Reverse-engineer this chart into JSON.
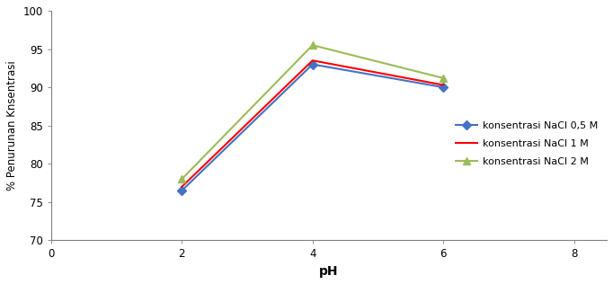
{
  "series": [
    {
      "label": "konsentrasi NaCl 0,5 M",
      "x": [
        2,
        4,
        6
      ],
      "y": [
        76.5,
        93.0,
        90.0
      ],
      "color": "#4472C4",
      "marker": "D",
      "markersize": 5,
      "linewidth": 1.5
    },
    {
      "label": "konsentrasi NaCl 1 M",
      "x": [
        2,
        4,
        6
      ],
      "y": [
        77.0,
        93.5,
        90.3
      ],
      "color": "#FF0000",
      "marker": "None",
      "markersize": 0,
      "linewidth": 1.5
    },
    {
      "label": "konsentrasi NaCl 2 M",
      "x": [
        2,
        4,
        6
      ],
      "y": [
        78.0,
        95.5,
        91.2
      ],
      "color": "#9BBB59",
      "marker": "^",
      "markersize": 6,
      "linewidth": 1.5
    }
  ],
  "xlabel": "pH",
  "ylabel": "% Penurunan Knsentrasi",
  "xlim": [
    0,
    8.5
  ],
  "ylim": [
    70,
    100
  ],
  "xticks": [
    0,
    2,
    4,
    6,
    8
  ],
  "yticks": [
    70,
    75,
    80,
    85,
    90,
    95,
    100
  ],
  "background_color": "#ffffff",
  "grid": false,
  "figsize": [
    6.82,
    3.16
  ],
  "dpi": 100
}
